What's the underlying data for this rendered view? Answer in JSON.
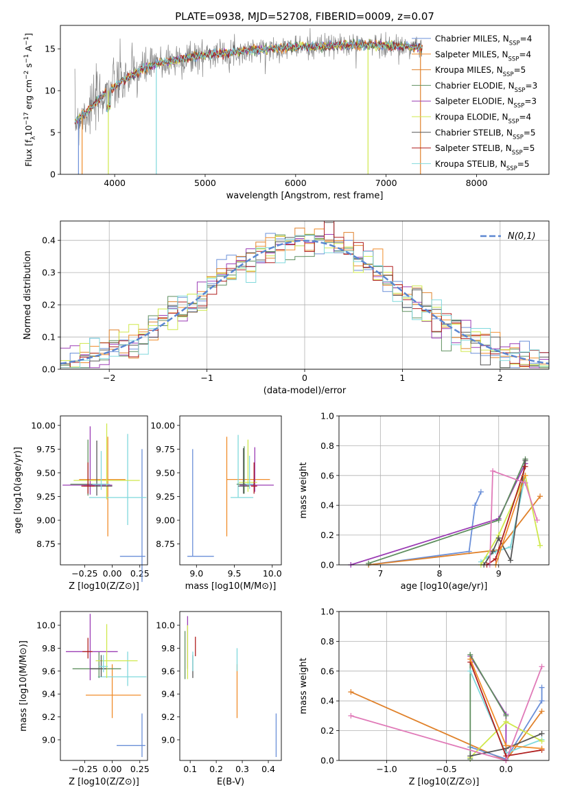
{
  "figure": {
    "title": "PLATE=0938, MJD=52708, FIBERID=0009, z=0.07"
  },
  "colors": {
    "series": [
      "#6a8fd8",
      "#f08c2a",
      "#e0812a",
      "#5f8f5f",
      "#9b3cb4",
      "#cfe84a",
      "#555555",
      "#b01e1e",
      "#7fd8dc"
    ],
    "data_spectrum": "#808080",
    "normal_curve": "#5b86d1"
  },
  "chart_data": [
    {
      "id": "spectrum",
      "type": "line",
      "xlabel": "wavelength [Angstrom, rest frame]",
      "ylabel": "Flux [f",
      "ylabel_parts": [
        "Flux [f",
        "λ",
        "10",
        "−17",
        " erg cm",
        "−2",
        " s",
        "−1",
        " A",
        "−1",
        "]"
      ],
      "xlim": [
        3400,
        8800
      ],
      "ylim": [
        0,
        17.8
      ],
      "xticks": [
        4000,
        5000,
        6000,
        7000,
        8000
      ],
      "yticks": [
        0,
        5,
        10,
        15
      ],
      "grid": false,
      "legend_position": "right",
      "legend": [
        {
          "name": "Chabrier MILES, N",
          "sub": "SSP",
          "suffix": "=4"
        },
        {
          "name": "Salpeter MILES, N",
          "sub": "SSP",
          "suffix": "=4"
        },
        {
          "name": "Kroupa MILES, N",
          "sub": "SSP",
          "suffix": "=5"
        },
        {
          "name": "Chabrier ELODIE, N",
          "sub": "SSP",
          "suffix": "=3"
        },
        {
          "name": "Salpeter ELODIE, N",
          "sub": "SSP",
          "suffix": "=3"
        },
        {
          "name": "Kroupa ELODIE, N",
          "sub": "SSP",
          "suffix": "=4"
        },
        {
          "name": "Chabrier STELIB, N",
          "sub": "SSP",
          "suffix": "=5"
        },
        {
          "name": "Salpeter STELIB, N",
          "sub": "SSP",
          "suffix": "=5"
        },
        {
          "name": "Kroupa STELIB, N",
          "sub": "SSP",
          "suffix": "=5"
        }
      ],
      "continuum": {
        "x": [
          3550,
          3700,
          3900,
          4100,
          4300,
          4500,
          4800,
          5000,
          5200,
          5500,
          5800,
          6000,
          6300,
          6600,
          7000,
          7200,
          7400
        ],
        "y": [
          6.3,
          7.5,
          9.8,
          11.2,
          12.5,
          13.3,
          13.9,
          14.3,
          14.5,
          14.8,
          15.1,
          15.2,
          15.3,
          15.5,
          15.4,
          15.3,
          15.1
        ]
      }
    },
    {
      "id": "residuals",
      "type": "histogram",
      "xlabel": "(data-model)/error",
      "ylabel": "Normed distribution",
      "xlim": [
        -2.5,
        2.5
      ],
      "ylim": [
        0,
        0.46
      ],
      "xticks": [
        -2,
        -1,
        0,
        1,
        2
      ],
      "yticks": [
        0.0,
        0.1,
        0.2,
        0.3,
        0.4
      ],
      "grid": true,
      "bin_width": 0.1,
      "legend_position": "top-right",
      "legend": [
        {
          "name": "N(0,1)",
          "style": "dashed"
        }
      ]
    },
    {
      "id": "age_vs_Z",
      "type": "scatter",
      "xlabel": "Z [log10(Z/Z⊙)]",
      "ylabel": "age  [log10(age/yr)]",
      "xlim": [
        -0.47,
        0.32
      ],
      "ylim": [
        8.53,
        10.1
      ],
      "xticks": [
        -0.25,
        0.0,
        0.25
      ],
      "yticks": [
        8.75,
        9.0,
        9.25,
        9.5,
        9.75,
        10.0
      ],
      "points": [
        {
          "x": 0.27,
          "y": 8.62,
          "xerr": [
            0.2,
            0.03
          ],
          "yerr": [
            0.27,
            1.13
          ],
          "color": 0
        },
        {
          "x": -0.04,
          "y": 9.43,
          "xerr": [
            0.26,
            0.16
          ],
          "yerr": [
            0.6,
            0.45
          ],
          "color": 1
        },
        {
          "x": 0.14,
          "y": 9.24,
          "xerr": [
            0.35,
            0.17
          ],
          "yerr": [
            0.29,
            0.67
          ],
          "color": 8
        },
        {
          "x": -0.22,
          "y": 9.38,
          "xerr": [
            0.16,
            0.16
          ],
          "yerr": [
            0.12,
            0.47
          ],
          "color": 3
        },
        {
          "x": -0.2,
          "y": 9.37,
          "xerr": [
            0.25,
            0.2
          ],
          "yerr": [
            0.1,
            0.62
          ],
          "color": 4
        },
        {
          "x": -0.05,
          "y": 9.42,
          "xerr": [
            0.3,
            0.3
          ],
          "yerr": [
            0.2,
            0.6
          ],
          "color": 5
        },
        {
          "x": -0.14,
          "y": 9.36,
          "xerr": [
            0.12,
            0.14
          ],
          "yerr": [
            0.1,
            0.48
          ],
          "color": 6
        },
        {
          "x": -0.22,
          "y": 9.36,
          "xerr": [
            0.06,
            0.06
          ],
          "yerr": [
            0.08,
            0.25
          ],
          "color": 7
        },
        {
          "x": -0.1,
          "y": 9.38,
          "xerr": [
            0.08,
            0.08
          ],
          "yerr": [
            0.06,
            0.35
          ],
          "color": 8
        }
      ]
    },
    {
      "id": "age_vs_mass",
      "type": "scatter",
      "xlabel": "mass [log10(M/M⊙)]",
      "ylabel": "",
      "xlim": [
        8.78,
        10.12
      ],
      "ylim": [
        8.53,
        10.1
      ],
      "xticks": [
        9.0,
        9.5,
        10.0
      ],
      "yticks": [
        8.75,
        9.0,
        9.25,
        9.5,
        9.75,
        10.0
      ],
      "points": [
        {
          "x": 8.95,
          "y": 8.62,
          "xerr": [
            0.07,
            0.28
          ],
          "yerr": [
            0.0,
            1.13
          ],
          "color": 0
        },
        {
          "x": 9.4,
          "y": 9.43,
          "xerr": [
            0.0,
            0.57
          ],
          "yerr": [
            0.6,
            0.45
          ],
          "color": 1
        },
        {
          "x": 9.55,
          "y": 9.24,
          "xerr": [
            0.1,
            0.2
          ],
          "yerr": [
            0.0,
            0.66
          ],
          "color": 8
        },
        {
          "x": 9.63,
          "y": 9.38,
          "xerr": [
            0.1,
            0.13
          ],
          "yerr": [
            0.1,
            0.4
          ],
          "color": 3
        },
        {
          "x": 9.77,
          "y": 9.37,
          "xerr": [
            0.2,
            0.25
          ],
          "yerr": [
            0.07,
            0.4
          ],
          "color": 4
        },
        {
          "x": 9.68,
          "y": 9.4,
          "xerr": [
            0.12,
            0.12
          ],
          "yerr": [
            0.1,
            0.45
          ],
          "color": 5
        },
        {
          "x": 9.62,
          "y": 9.36,
          "xerr": [
            0.07,
            0.08
          ],
          "yerr": [
            0.08,
            0.4
          ],
          "color": 6
        },
        {
          "x": 9.76,
          "y": 9.36,
          "xerr": [
            0.04,
            0.04
          ],
          "yerr": [
            0.08,
            0.25
          ],
          "color": 7
        },
        {
          "x": 9.7,
          "y": 9.38,
          "xerr": [
            0.05,
            0.05
          ],
          "yerr": [
            0.05,
            0.3
          ],
          "color": 8
        }
      ]
    },
    {
      "id": "weight_vs_age",
      "type": "line",
      "xlabel": "age  [log10(age/yr)]",
      "ylabel": "mass weight",
      "xlim": [
        6.3,
        9.85
      ],
      "ylim": [
        0,
        1.0
      ],
      "xticks": [
        7,
        8,
        9
      ],
      "yticks": [
        0.0,
        0.2,
        0.4,
        0.6,
        0.8,
        1.0
      ],
      "grid": true,
      "series": [
        {
          "color": 0,
          "x": [
            6.8,
            8.5,
            8.6,
            8.7
          ],
          "y": [
            0.0,
            0.09,
            0.4,
            0.49
          ]
        },
        {
          "color": 2,
          "x": [
            6.8,
            9.0,
            9.7
          ],
          "y": [
            0.0,
            0.1,
            0.46
          ]
        },
        {
          "color": 4,
          "x": [
            6.5,
            9.0,
            9.45
          ],
          "y": [
            0.0,
            0.31,
            0.68
          ]
        },
        {
          "color": 3,
          "x": [
            6.8,
            9.0,
            9.45
          ],
          "y": [
            0.01,
            0.3,
            0.71
          ]
        },
        {
          "color": 8,
          "x": [
            8.7,
            8.8,
            8.95,
            9.2,
            9.45
          ],
          "y": [
            0.02,
            0.05,
            0.09,
            0.12,
            0.6
          ]
        },
        {
          "color": 5,
          "x": [
            8.7,
            9.0,
            9.45,
            9.7
          ],
          "y": [
            0.0,
            0.2,
            0.6,
            0.13
          ]
        },
        {
          "color": 6,
          "x": [
            8.75,
            8.9,
            9.0,
            9.2,
            9.45
          ],
          "y": [
            0.0,
            0.09,
            0.18,
            0.03,
            0.7
          ]
        },
        {
          "color": 7,
          "x": [
            8.8,
            8.95,
            9.45
          ],
          "y": [
            0.0,
            0.04,
            0.66
          ]
        },
        {
          "color": 1,
          "x": [
            8.95,
            9.45
          ],
          "y": [
            0.0,
            0.6
          ]
        }
      ],
      "extra": {
        "color": "#e07ab8",
        "x": [
          8.85,
          8.9,
          9.45,
          9.65
        ],
        "y": [
          0.0,
          0.63,
          0.55,
          0.3
        ]
      }
    },
    {
      "id": "mass_vs_Z",
      "type": "scatter",
      "xlabel": "Z [log10(Z/Z⊙)]",
      "ylabel": "mass [log10(M/M⊙)]",
      "xlim": [
        -0.47,
        0.32
      ],
      "ylim": [
        8.82,
        10.12
      ],
      "xticks": [
        -0.25,
        0.0,
        0.25
      ],
      "yticks": [
        9.0,
        9.2,
        9.4,
        9.6,
        9.8,
        10.0
      ],
      "points": [
        {
          "x": 0.27,
          "y": 8.95,
          "xerr": [
            0.23,
            0.03
          ],
          "yerr": [
            0.1,
            0.28
          ],
          "color": 0
        },
        {
          "x": 0.0,
          "y": 9.39,
          "xerr": [
            0.24,
            0.26
          ],
          "yerr": [
            0.2,
            0.27
          ],
          "color": 1
        },
        {
          "x": 0.14,
          "y": 9.55,
          "xerr": [
            0.27,
            0.17
          ],
          "yerr": [
            0.08,
            0.22
          ],
          "color": 8
        },
        {
          "x": -0.12,
          "y": 9.62,
          "xerr": [
            0.24,
            0.2
          ],
          "yerr": [
            0.08,
            0.15
          ],
          "color": 3
        },
        {
          "x": -0.2,
          "y": 9.77,
          "xerr": [
            0.22,
            0.25
          ],
          "yerr": [
            0.25,
            0.33
          ],
          "color": 4
        },
        {
          "x": -0.05,
          "y": 9.69,
          "xerr": [
            0.1,
            0.28
          ],
          "yerr": [
            0.15,
            0.32
          ],
          "color": 5
        },
        {
          "x": -0.1,
          "y": 9.62,
          "xerr": [
            0.1,
            0.05
          ],
          "yerr": [
            0.07,
            0.12
          ],
          "color": 6
        },
        {
          "x": -0.22,
          "y": 9.77,
          "xerr": [
            0.05,
            0.04
          ],
          "yerr": [
            0.06,
            0.12
          ],
          "color": 7
        },
        {
          "x": -0.08,
          "y": 9.64,
          "xerr": [
            0.04,
            0.04
          ],
          "yerr": [
            0.05,
            0.1
          ],
          "color": 8
        }
      ]
    },
    {
      "id": "mass_vs_ebv",
      "type": "scatter",
      "xlabel": "E(B-V)",
      "ylabel": "",
      "xlim": [
        0.06,
        0.45
      ],
      "ylim": [
        8.82,
        10.12
      ],
      "xticks": [
        0.1,
        0.2,
        0.3,
        0.4
      ],
      "yticks": [
        9.0,
        9.2,
        9.4,
        9.6,
        9.8,
        10.0
      ],
      "points": [
        {
          "x": 0.43,
          "y": 8.95,
          "yerr": [
            0.1,
            0.28
          ],
          "color": 0
        },
        {
          "x": 0.28,
          "y": 9.39,
          "yerr": [
            0.2,
            0.27
          ],
          "color": 1
        },
        {
          "x": 0.28,
          "y": 9.7,
          "yerr": [
            0.1,
            0.1
          ],
          "color": 8
        },
        {
          "x": 0.08,
          "y": 9.63,
          "yerr": [
            0.1,
            0.32
          ],
          "color": 3
        },
        {
          "x": 0.09,
          "y": 9.8,
          "yerr": [
            0.18,
            0.28
          ],
          "color": 4
        },
        {
          "x": 0.09,
          "y": 9.68,
          "yerr": [
            0.15,
            0.32
          ],
          "color": 5
        },
        {
          "x": 0.11,
          "y": 9.62,
          "yerr": [
            0.08,
            0.12
          ],
          "color": 6
        },
        {
          "x": 0.12,
          "y": 9.8,
          "yerr": [
            0.07,
            0.1
          ],
          "color": 7
        },
        {
          "x": 0.11,
          "y": 9.67,
          "yerr": [
            0.07,
            0.1
          ],
          "color": 8
        }
      ]
    },
    {
      "id": "weight_vs_Z",
      "type": "line",
      "xlabel": "Z [log10(Z/Z⊙)]",
      "ylabel": "mass weight",
      "xlim": [
        -1.4,
        0.36
      ],
      "ylim": [
        0,
        1.0
      ],
      "xticks": [
        -1.0,
        -0.5,
        0.0
      ],
      "yticks": [
        0.0,
        0.2,
        0.4,
        0.6,
        0.8,
        1.0
      ],
      "grid": true,
      "series": [
        {
          "color": 2,
          "x": [
            -1.3,
            0.0,
            0.3
          ],
          "y": [
            0.46,
            0.0,
            0.33
          ]
        },
        {
          "color": 0,
          "x": [
            -0.3,
            0.0,
            0.3,
            0.3
          ],
          "y": [
            0.09,
            0.01,
            0.4,
            0.49
          ]
        },
        {
          "color": 4,
          "x": [
            -0.3,
            0.0,
            0.0
          ],
          "y": [
            0.7,
            0.31,
            0.0
          ]
        },
        {
          "color": 3,
          "x": [
            -0.3,
            -0.3,
            0.0
          ],
          "y": [
            0.01,
            0.71,
            0.3
          ]
        },
        {
          "color": 8,
          "x": [
            -0.3,
            0.0,
            0.3
          ],
          "y": [
            0.6,
            0.05,
            0.14
          ]
        },
        {
          "color": 5,
          "x": [
            -0.3,
            0.0,
            0.3
          ],
          "y": [
            0.02,
            0.26,
            0.13
          ]
        },
        {
          "color": 6,
          "x": [
            -0.3,
            0.0,
            0.3
          ],
          "y": [
            0.03,
            0.08,
            0.18
          ]
        },
        {
          "color": 7,
          "x": [
            -0.3,
            0.0,
            0.3
          ],
          "y": [
            0.66,
            0.03,
            0.07
          ]
        },
        {
          "color": 1,
          "x": [
            -0.3,
            0.0,
            0.3
          ],
          "y": [
            0.68,
            0.1,
            0.08
          ]
        }
      ],
      "extra": {
        "color": "#e07ab8",
        "x": [
          -1.3,
          0.0,
          0.3
        ],
        "y": [
          0.3,
          0.0,
          0.63
        ]
      }
    }
  ]
}
